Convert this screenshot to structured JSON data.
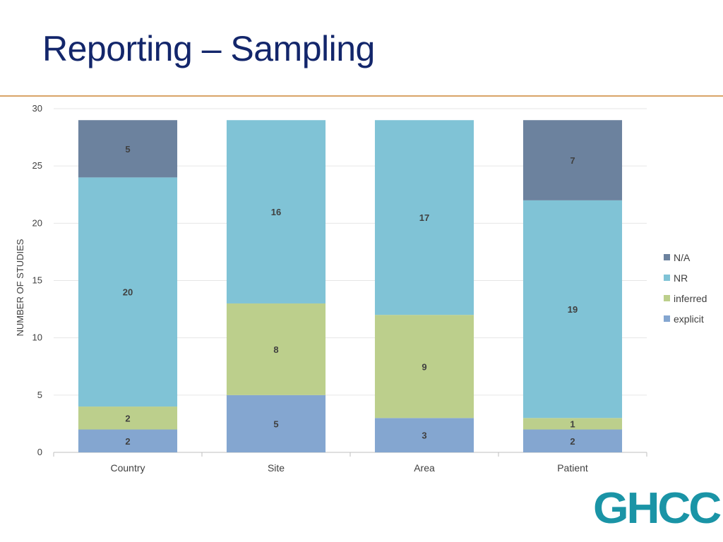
{
  "slide": {
    "title": "Reporting – Sampling",
    "logo_text": "GHCC"
  },
  "colors": {
    "title": "#13266b",
    "rule": "#d9a467",
    "logo": "#1a94a6"
  },
  "chart_data": {
    "type": "bar",
    "stacked": true,
    "title": "",
    "xlabel": "",
    "ylabel": "NUMBER OF STUDIES",
    "ylim": [
      0,
      30
    ],
    "yticks": [
      0,
      5,
      10,
      15,
      20,
      25,
      30
    ],
    "grid": true,
    "legend_position": "right",
    "categories": [
      "Country",
      "Site",
      "Area",
      "Patient"
    ],
    "series": [
      {
        "name": "explicit",
        "color": "#84a6d0",
        "values": [
          2,
          5,
          3,
          2
        ]
      },
      {
        "name": "inferred",
        "color": "#bccf8c",
        "values": [
          2,
          8,
          9,
          1
        ]
      },
      {
        "name": "NR",
        "color": "#80c3d6",
        "values": [
          20,
          16,
          17,
          19
        ]
      },
      {
        "name": "N/A",
        "color": "#6c829e",
        "values": [
          5,
          0,
          0,
          7
        ]
      }
    ]
  }
}
